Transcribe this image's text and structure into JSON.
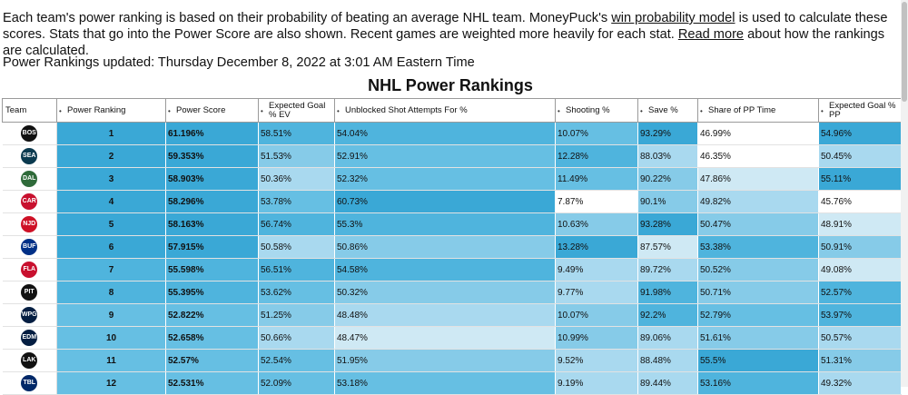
{
  "intro": {
    "part1": "Each team's power ranking is based on their probability of beating an average NHL team. MoneyPuck's ",
    "link1": "win probability model",
    "part2": " is used to calculate these scores. Stats that go into the Power Score are also shown. Recent games are weighted more heavily for each stat. ",
    "link2": "Read more",
    "part3": " about how the rankings are calculated."
  },
  "updated": "Power Rankings updated: Thursday December 8, 2022 at 3:01 AM Eastern Time",
  "title": "NHL Power Rankings",
  "sort_glyph": "•",
  "columns": [
    "Team",
    "Power Ranking",
    "Power Score",
    "Expected Goal % EV",
    "Unblocked Shot Attempts For %",
    "Shooting %",
    "Save %",
    "Share of PP Time",
    "Expected Goal % PP"
  ],
  "colors": {
    "c0": "#ffffff",
    "c1": "#cfe9f4",
    "c2": "#a9d9ef",
    "c3": "#86cbe8",
    "c4": "#66bfe3",
    "c5": "#4fb4dd",
    "c6": "#3aa8d6"
  },
  "rows": [
    {
      "logo": "BOS",
      "logo_color": "#111111",
      "rank": "1",
      "score": "61.196%",
      "xg_ev": "58.51%",
      "usa": "54.04%",
      "sh": "10.07%",
      "sv": "93.29%",
      "pp": "46.99%",
      "xg_pp": "54.96%",
      "shade": [
        "c6",
        "c6",
        "c5",
        "c5",
        "c4",
        "c6",
        "c0",
        "c6"
      ]
    },
    {
      "logo": "SEA",
      "logo_color": "#0b3a4f",
      "rank": "2",
      "score": "59.353%",
      "xg_ev": "51.53%",
      "usa": "52.91%",
      "sh": "12.28%",
      "sv": "88.03%",
      "pp": "46.35%",
      "xg_pp": "50.45%",
      "shade": [
        "c6",
        "c6",
        "c3",
        "c4",
        "c5",
        "c2",
        "c0",
        "c2"
      ]
    },
    {
      "logo": "DAL",
      "logo_color": "#2f6b3a",
      "rank": "3",
      "score": "58.903%",
      "xg_ev": "50.36%",
      "usa": "52.32%",
      "sh": "11.49%",
      "sv": "90.22%",
      "pp": "47.86%",
      "xg_pp": "55.11%",
      "shade": [
        "c6",
        "c6",
        "c2",
        "c4",
        "c4",
        "c3",
        "c1",
        "c6"
      ]
    },
    {
      "logo": "CAR",
      "logo_color": "#c8102e",
      "rank": "4",
      "score": "58.296%",
      "xg_ev": "53.78%",
      "usa": "60.73%",
      "sh": "7.87%",
      "sv": "90.1%",
      "pp": "49.82%",
      "xg_pp": "45.76%",
      "shade": [
        "c6",
        "c6",
        "c4",
        "c6",
        "c0",
        "c3",
        "c2",
        "c0"
      ]
    },
    {
      "logo": "NJD",
      "logo_color": "#ce1126",
      "rank": "5",
      "score": "58.163%",
      "xg_ev": "56.74%",
      "usa": "55.3%",
      "sh": "10.63%",
      "sv": "93.28%",
      "pp": "50.47%",
      "xg_pp": "48.91%",
      "shade": [
        "c6",
        "c6",
        "c5",
        "c5",
        "c3",
        "c6",
        "c3",
        "c1"
      ]
    },
    {
      "logo": "BUF",
      "logo_color": "#003087",
      "rank": "6",
      "score": "57.915%",
      "xg_ev": "50.58%",
      "usa": "50.86%",
      "sh": "13.28%",
      "sv": "87.57%",
      "pp": "53.38%",
      "xg_pp": "50.91%",
      "shade": [
        "c6",
        "c6",
        "c2",
        "c3",
        "c6",
        "c1",
        "c5",
        "c3"
      ]
    },
    {
      "logo": "FLA",
      "logo_color": "#c8102e",
      "rank": "7",
      "score": "55.598%",
      "xg_ev": "56.51%",
      "usa": "54.58%",
      "sh": "9.49%",
      "sv": "89.72%",
      "pp": "50.52%",
      "xg_pp": "49.08%",
      "shade": [
        "c5",
        "c5",
        "c5",
        "c5",
        "c2",
        "c2",
        "c3",
        "c1"
      ]
    },
    {
      "logo": "PIT",
      "logo_color": "#111111",
      "rank": "8",
      "score": "55.395%",
      "xg_ev": "53.62%",
      "usa": "50.32%",
      "sh": "9.77%",
      "sv": "91.98%",
      "pp": "50.71%",
      "xg_pp": "52.57%",
      "shade": [
        "c5",
        "c5",
        "c4",
        "c3",
        "c2",
        "c5",
        "c3",
        "c5"
      ]
    },
    {
      "logo": "WPG",
      "logo_color": "#041e42",
      "rank": "9",
      "score": "52.822%",
      "xg_ev": "51.25%",
      "usa": "48.48%",
      "sh": "10.07%",
      "sv": "92.2%",
      "pp": "52.79%",
      "xg_pp": "53.97%",
      "shade": [
        "c4",
        "c4",
        "c3",
        "c2",
        "c3",
        "c5",
        "c4",
        "c5"
      ]
    },
    {
      "logo": "EDM",
      "logo_color": "#041e42",
      "rank": "10",
      "score": "52.658%",
      "xg_ev": "50.66%",
      "usa": "48.47%",
      "sh": "10.99%",
      "sv": "89.06%",
      "pp": "51.61%",
      "xg_pp": "50.57%",
      "shade": [
        "c4",
        "c4",
        "c2",
        "c1",
        "c3",
        "c2",
        "c3",
        "c2"
      ]
    },
    {
      "logo": "LAK",
      "logo_color": "#111111",
      "rank": "11",
      "score": "52.57%",
      "xg_ev": "52.54%",
      "usa": "51.95%",
      "sh": "9.52%",
      "sv": "88.48%",
      "pp": "55.5%",
      "xg_pp": "51.31%",
      "shade": [
        "c4",
        "c4",
        "c4",
        "c3",
        "c2",
        "c2",
        "c6",
        "c3"
      ]
    },
    {
      "logo": "TBL",
      "logo_color": "#002868",
      "rank": "12",
      "score": "52.531%",
      "xg_ev": "52.09%",
      "usa": "53.18%",
      "sh": "9.19%",
      "sv": "89.44%",
      "pp": "53.16%",
      "xg_pp": "49.32%",
      "shade": [
        "c4",
        "c4",
        "c4",
        "c4",
        "c2",
        "c2",
        "c5",
        "c2"
      ]
    }
  ]
}
